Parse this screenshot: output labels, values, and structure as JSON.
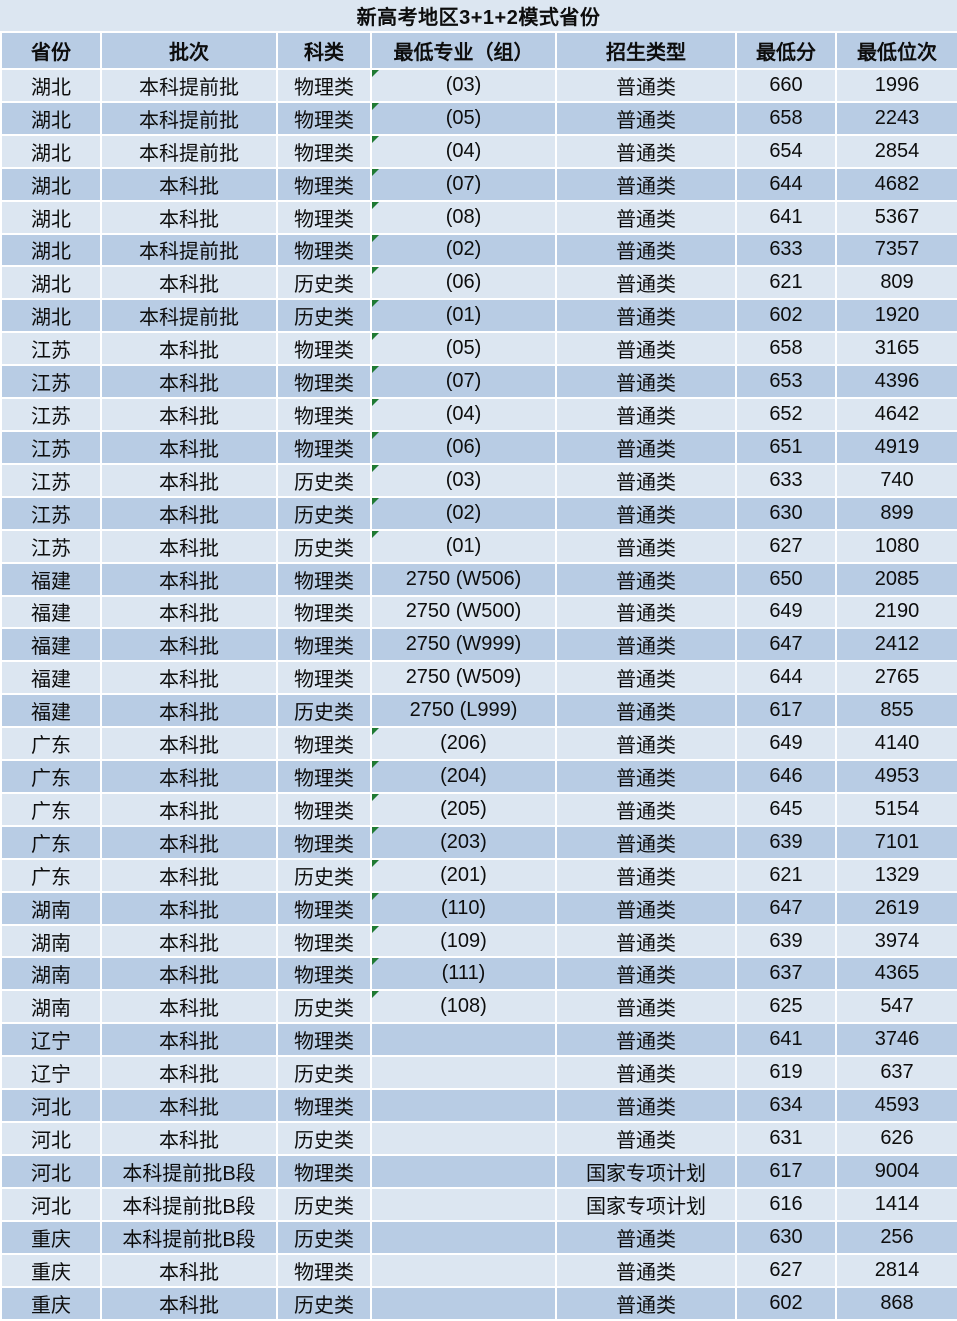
{
  "chart_data": {
    "type": "table",
    "title": "新高考地区3+1+2模式省份",
    "columns": [
      "省份",
      "批次",
      "科类",
      "最低专业（组）",
      "招生类型",
      "最低分",
      "最低位次"
    ],
    "rows": [
      {
        "province": "湖北",
        "batch": "本科提前批",
        "subject": "物理类",
        "major_group": "(03)",
        "admission_type": "普通类",
        "min_score": "660",
        "min_rank": "1996",
        "error_flag": true
      },
      {
        "province": "湖北",
        "batch": "本科提前批",
        "subject": "物理类",
        "major_group": "(05)",
        "admission_type": "普通类",
        "min_score": "658",
        "min_rank": "2243",
        "error_flag": true
      },
      {
        "province": "湖北",
        "batch": "本科提前批",
        "subject": "物理类",
        "major_group": "(04)",
        "admission_type": "普通类",
        "min_score": "654",
        "min_rank": "2854",
        "error_flag": true
      },
      {
        "province": "湖北",
        "batch": "本科批",
        "subject": "物理类",
        "major_group": "(07)",
        "admission_type": "普通类",
        "min_score": "644",
        "min_rank": "4682",
        "error_flag": true
      },
      {
        "province": "湖北",
        "batch": "本科批",
        "subject": "物理类",
        "major_group": "(08)",
        "admission_type": "普通类",
        "min_score": "641",
        "min_rank": "5367",
        "error_flag": true
      },
      {
        "province": "湖北",
        "batch": "本科提前批",
        "subject": "物理类",
        "major_group": "(02)",
        "admission_type": "普通类",
        "min_score": "633",
        "min_rank": "7357",
        "error_flag": true
      },
      {
        "province": "湖北",
        "batch": "本科批",
        "subject": "历史类",
        "major_group": "(06)",
        "admission_type": "普通类",
        "min_score": "621",
        "min_rank": "809",
        "error_flag": true
      },
      {
        "province": "湖北",
        "batch": "本科提前批",
        "subject": "历史类",
        "major_group": "(01)",
        "admission_type": "普通类",
        "min_score": "602",
        "min_rank": "1920",
        "error_flag": true
      },
      {
        "province": "江苏",
        "batch": "本科批",
        "subject": "物理类",
        "major_group": "(05)",
        "admission_type": "普通类",
        "min_score": "658",
        "min_rank": "3165",
        "error_flag": true
      },
      {
        "province": "江苏",
        "batch": "本科批",
        "subject": "物理类",
        "major_group": "(07)",
        "admission_type": "普通类",
        "min_score": "653",
        "min_rank": "4396",
        "error_flag": true
      },
      {
        "province": "江苏",
        "batch": "本科批",
        "subject": "物理类",
        "major_group": "(04)",
        "admission_type": "普通类",
        "min_score": "652",
        "min_rank": "4642",
        "error_flag": true
      },
      {
        "province": "江苏",
        "batch": "本科批",
        "subject": "物理类",
        "major_group": "(06)",
        "admission_type": "普通类",
        "min_score": "651",
        "min_rank": "4919",
        "error_flag": true
      },
      {
        "province": "江苏",
        "batch": "本科批",
        "subject": "历史类",
        "major_group": "(03)",
        "admission_type": "普通类",
        "min_score": "633",
        "min_rank": "740",
        "error_flag": true
      },
      {
        "province": "江苏",
        "batch": "本科批",
        "subject": "历史类",
        "major_group": "(02)",
        "admission_type": "普通类",
        "min_score": "630",
        "min_rank": "899",
        "error_flag": true
      },
      {
        "province": "江苏",
        "batch": "本科批",
        "subject": "历史类",
        "major_group": "(01)",
        "admission_type": "普通类",
        "min_score": "627",
        "min_rank": "1080",
        "error_flag": true
      },
      {
        "province": "福建",
        "batch": "本科批",
        "subject": "物理类",
        "major_group": "2750 (W506)",
        "admission_type": "普通类",
        "min_score": "650",
        "min_rank": "2085",
        "error_flag": false
      },
      {
        "province": "福建",
        "batch": "本科批",
        "subject": "物理类",
        "major_group": "2750 (W500)",
        "admission_type": "普通类",
        "min_score": "649",
        "min_rank": "2190",
        "error_flag": false
      },
      {
        "province": "福建",
        "batch": "本科批",
        "subject": "物理类",
        "major_group": "2750 (W999)",
        "admission_type": "普通类",
        "min_score": "647",
        "min_rank": "2412",
        "error_flag": false
      },
      {
        "province": "福建",
        "batch": "本科批",
        "subject": "物理类",
        "major_group": "2750 (W509)",
        "admission_type": "普通类",
        "min_score": "644",
        "min_rank": "2765",
        "error_flag": false
      },
      {
        "province": "福建",
        "batch": "本科批",
        "subject": "历史类",
        "major_group": "2750 (L999)",
        "admission_type": "普通类",
        "min_score": "617",
        "min_rank": "855",
        "error_flag": false
      },
      {
        "province": "广东",
        "batch": "本科批",
        "subject": "物理类",
        "major_group": "(206)",
        "admission_type": "普通类",
        "min_score": "649",
        "min_rank": "4140",
        "error_flag": true
      },
      {
        "province": "广东",
        "batch": "本科批",
        "subject": "物理类",
        "major_group": "(204)",
        "admission_type": "普通类",
        "min_score": "646",
        "min_rank": "4953",
        "error_flag": true
      },
      {
        "province": "广东",
        "batch": "本科批",
        "subject": "物理类",
        "major_group": "(205)",
        "admission_type": "普通类",
        "min_score": "645",
        "min_rank": "5154",
        "error_flag": true
      },
      {
        "province": "广东",
        "batch": "本科批",
        "subject": "物理类",
        "major_group": "(203)",
        "admission_type": "普通类",
        "min_score": "639",
        "min_rank": "7101",
        "error_flag": true
      },
      {
        "province": "广东",
        "batch": "本科批",
        "subject": "历史类",
        "major_group": "(201)",
        "admission_type": "普通类",
        "min_score": "621",
        "min_rank": "1329",
        "error_flag": true
      },
      {
        "province": "湖南",
        "batch": "本科批",
        "subject": "物理类",
        "major_group": "(110)",
        "admission_type": "普通类",
        "min_score": "647",
        "min_rank": "2619",
        "error_flag": true
      },
      {
        "province": "湖南",
        "batch": "本科批",
        "subject": "物理类",
        "major_group": "(109)",
        "admission_type": "普通类",
        "min_score": "639",
        "min_rank": "3974",
        "error_flag": true
      },
      {
        "province": "湖南",
        "batch": "本科批",
        "subject": "物理类",
        "major_group": "(111)",
        "admission_type": "普通类",
        "min_score": "637",
        "min_rank": "4365",
        "error_flag": true
      },
      {
        "province": "湖南",
        "batch": "本科批",
        "subject": "历史类",
        "major_group": "(108)",
        "admission_type": "普通类",
        "min_score": "625",
        "min_rank": "547",
        "error_flag": true
      },
      {
        "province": "辽宁",
        "batch": "本科批",
        "subject": "物理类",
        "major_group": "",
        "admission_type": "普通类",
        "min_score": "641",
        "min_rank": "3746",
        "error_flag": false
      },
      {
        "province": "辽宁",
        "batch": "本科批",
        "subject": "历史类",
        "major_group": "",
        "admission_type": "普通类",
        "min_score": "619",
        "min_rank": "637",
        "error_flag": false
      },
      {
        "province": "河北",
        "batch": "本科批",
        "subject": "物理类",
        "major_group": "",
        "admission_type": "普通类",
        "min_score": "634",
        "min_rank": "4593",
        "error_flag": false
      },
      {
        "province": "河北",
        "batch": "本科批",
        "subject": "历史类",
        "major_group": "",
        "admission_type": "普通类",
        "min_score": "631",
        "min_rank": "626",
        "error_flag": false
      },
      {
        "province": "河北",
        "batch": "本科提前批B段",
        "subject": "物理类",
        "major_group": "",
        "admission_type": "国家专项计划",
        "min_score": "617",
        "min_rank": "9004",
        "error_flag": false
      },
      {
        "province": "河北",
        "batch": "本科提前批B段",
        "subject": "历史类",
        "major_group": "",
        "admission_type": "国家专项计划",
        "min_score": "616",
        "min_rank": "1414",
        "error_flag": false
      },
      {
        "province": "重庆",
        "batch": "本科提前批B段",
        "subject": "历史类",
        "major_group": "",
        "admission_type": "普通类",
        "min_score": "630",
        "min_rank": "256",
        "error_flag": false
      },
      {
        "province": "重庆",
        "batch": "本科批",
        "subject": "物理类",
        "major_group": "",
        "admission_type": "普通类",
        "min_score": "627",
        "min_rank": "2814",
        "error_flag": false
      },
      {
        "province": "重庆",
        "batch": "本科批",
        "subject": "历史类",
        "major_group": "",
        "admission_type": "普通类",
        "min_score": "602",
        "min_rank": "868",
        "error_flag": false
      }
    ],
    "layout_hints": {
      "row_striping": "odd rows light, even rows dark",
      "error_flag_meaning": "green Excel-style number-stored-as-text indicator in top-left of 最低专业（组）cell"
    }
  },
  "colors": {
    "title_bg": "#dce6f1",
    "header_bg": "#b8cce4",
    "row_light": "#dce6f1",
    "row_dark": "#b8cce4",
    "separator": "#ffffff",
    "error_flag_green": "#1f7a33",
    "text": "#0d0d0d"
  }
}
